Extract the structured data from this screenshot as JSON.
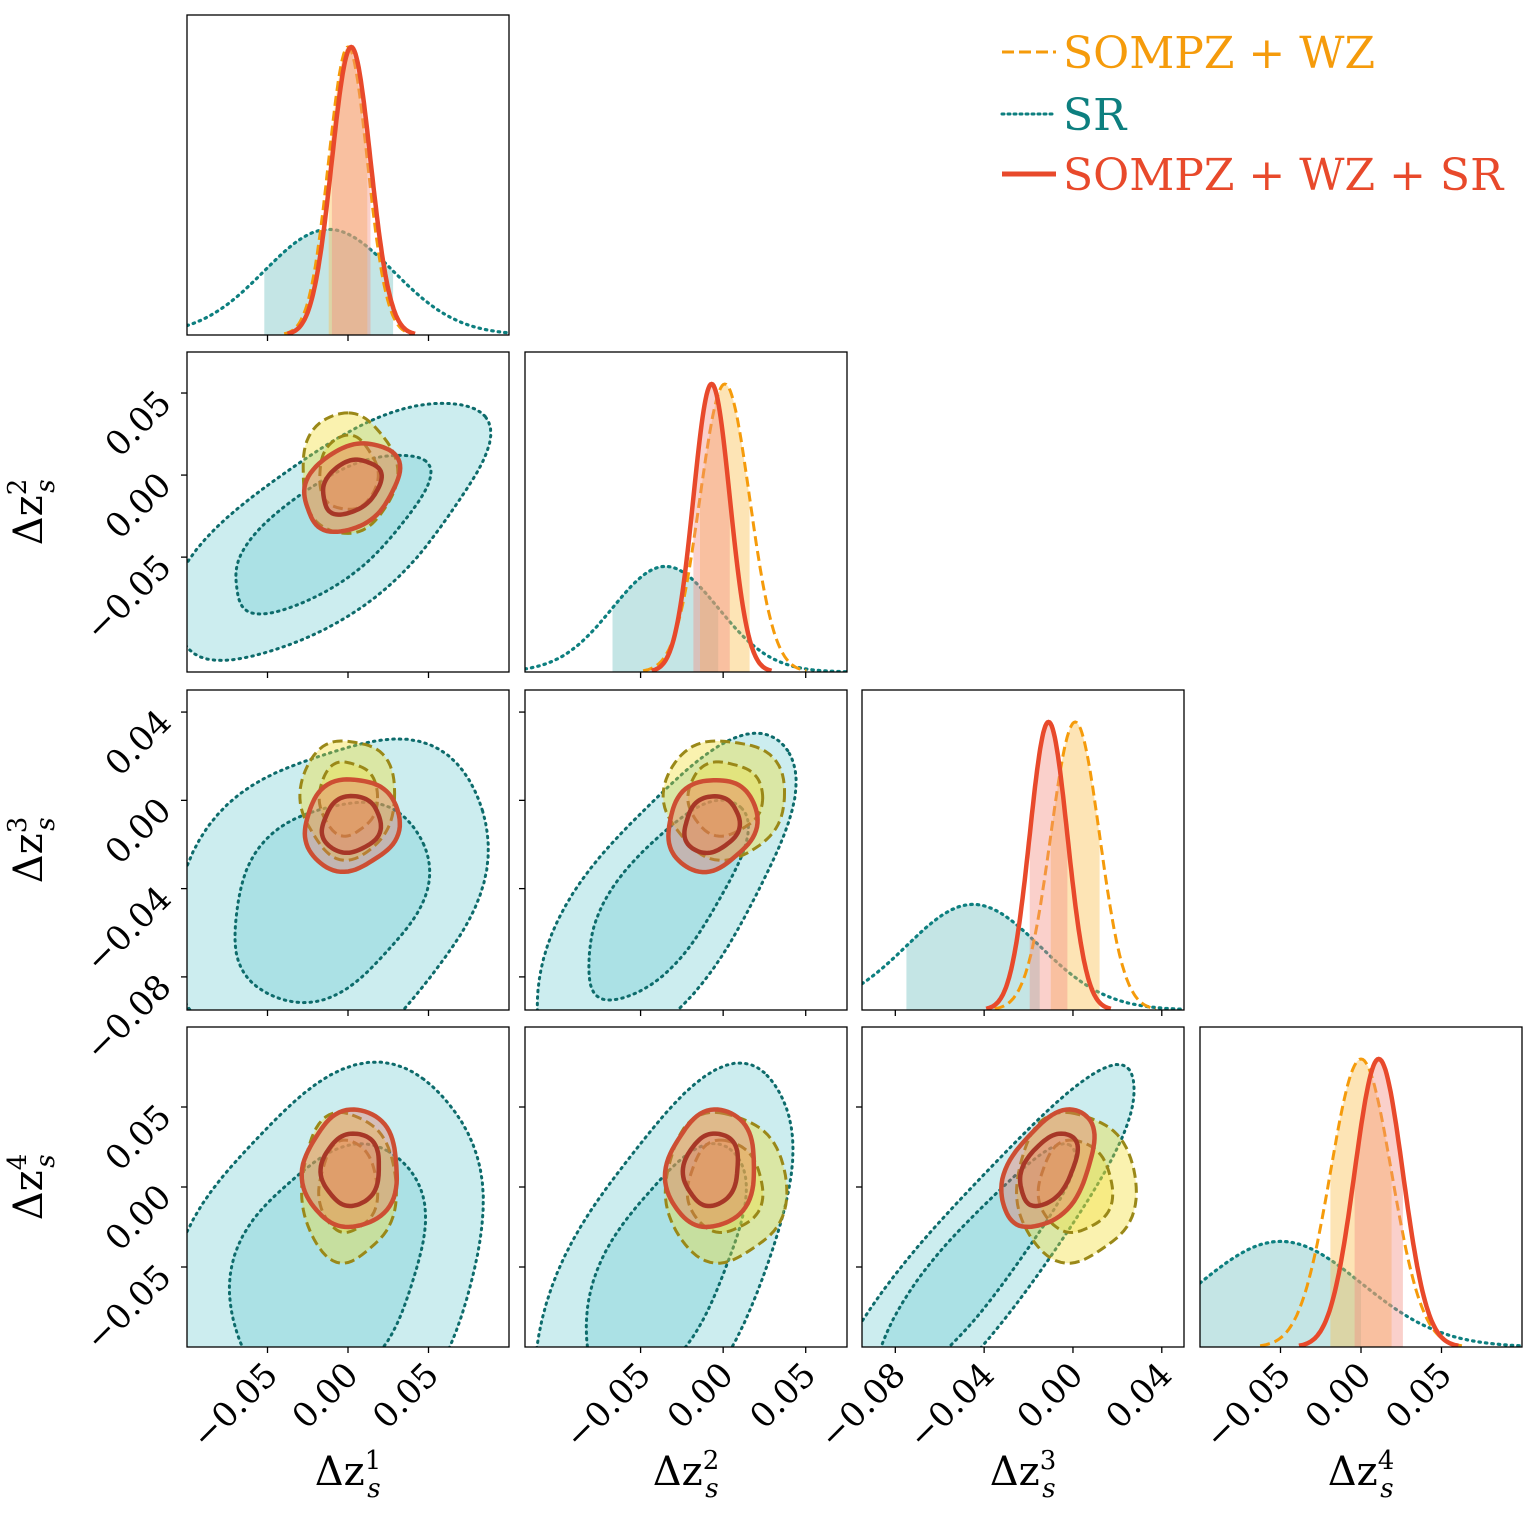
{
  "chart_data": {
    "type": "corner",
    "parameters": [
      {
        "symbol": "Δz",
        "sub": "s",
        "sup": "1",
        "range": [
          -0.1,
          0.1
        ],
        "ticks": [
          -0.05,
          0.0,
          0.05
        ],
        "tick_labels": [
          "−0.05",
          "0.00",
          "0.05"
        ]
      },
      {
        "symbol": "Δz",
        "sub": "s",
        "sup": "2",
        "range": [
          -0.12,
          0.075
        ],
        "ticks": [
          -0.05,
          0.0,
          0.05
        ],
        "tick_labels": [
          "−0.05",
          "0.00",
          "0.05"
        ]
      },
      {
        "symbol": "Δz",
        "sub": "s",
        "sup": "3",
        "range": [
          -0.095,
          0.05
        ],
        "ticks": [
          -0.08,
          -0.04,
          0.0,
          0.04
        ],
        "tick_labels": [
          "−0.08",
          "−0.04",
          "0.00",
          "0.04"
        ]
      },
      {
        "symbol": "Δz",
        "sub": "s",
        "sup": "4",
        "range": [
          -0.1,
          0.1
        ],
        "ticks": [
          -0.05,
          0.0,
          0.05
        ],
        "tick_labels": [
          "−0.05",
          "0.00",
          "0.05"
        ]
      }
    ],
    "legend": {
      "placement": "top-right",
      "entries": [
        {
          "label": "SOMPZ + WZ",
          "style": "dashed",
          "color": "#f59b0b"
        },
        {
          "label": "SR",
          "style": "dotted",
          "color": "#0d7f7f"
        },
        {
          "label": "SOMPZ + WZ + SR",
          "style": "solid",
          "color": "#e8492b"
        }
      ]
    },
    "series": [
      {
        "name": "SOMPZ + WZ",
        "mean": [
          0.0,
          0.001,
          0.001,
          0.0
        ],
        "sigma": [
          0.012,
          0.015,
          0.011,
          0.019
        ],
        "corr": [
          [
            1,
            0,
            0,
            0
          ],
          [
            0,
            1,
            0,
            0
          ],
          [
            0,
            0,
            1,
            0
          ],
          [
            0,
            0,
            0,
            1
          ]
        ],
        "line_color": "#f59b0b",
        "fill_color": "#fbbf4e",
        "contour_line": "#9a8818",
        "contour_fill": "#f2dd2c"
      },
      {
        "name": "SR",
        "mean": [
          -0.012,
          -0.035,
          -0.045,
          -0.05
        ],
        "sigma": [
          0.04,
          0.032,
          0.03,
          0.05
        ],
        "corr": [
          [
            1,
            0.7,
            0.3,
            0.3
          ],
          [
            0.7,
            1,
            0.7,
            0.6
          ],
          [
            0.3,
            0.7,
            1,
            0.9
          ],
          [
            0.3,
            0.6,
            0.9,
            1
          ]
        ],
        "line_color": "#0d7f7f",
        "fill_color": "#7cc6c6",
        "contour_line": "#0d6b6b",
        "contour_fill": "#5fc8cc"
      },
      {
        "name": "SOMPZ + WZ + SR",
        "mean": [
          0.002,
          -0.007,
          -0.011,
          0.011
        ],
        "sigma": [
          0.012,
          0.011,
          0.0085,
          0.015
        ],
        "corr": [
          [
            1,
            0.3,
            0.1,
            0.05
          ],
          [
            0.3,
            1,
            0.15,
            0.1
          ],
          [
            0.1,
            0.15,
            1,
            0.45
          ],
          [
            0.05,
            0.1,
            0.45,
            1
          ]
        ],
        "line_color": "#e8492b",
        "fill_color": "#f28e84",
        "contour_line_outer": "#cd4e33",
        "contour_line_inner": "#a73727",
        "contour_fill": "#e87060"
      }
    ],
    "grid": false
  }
}
